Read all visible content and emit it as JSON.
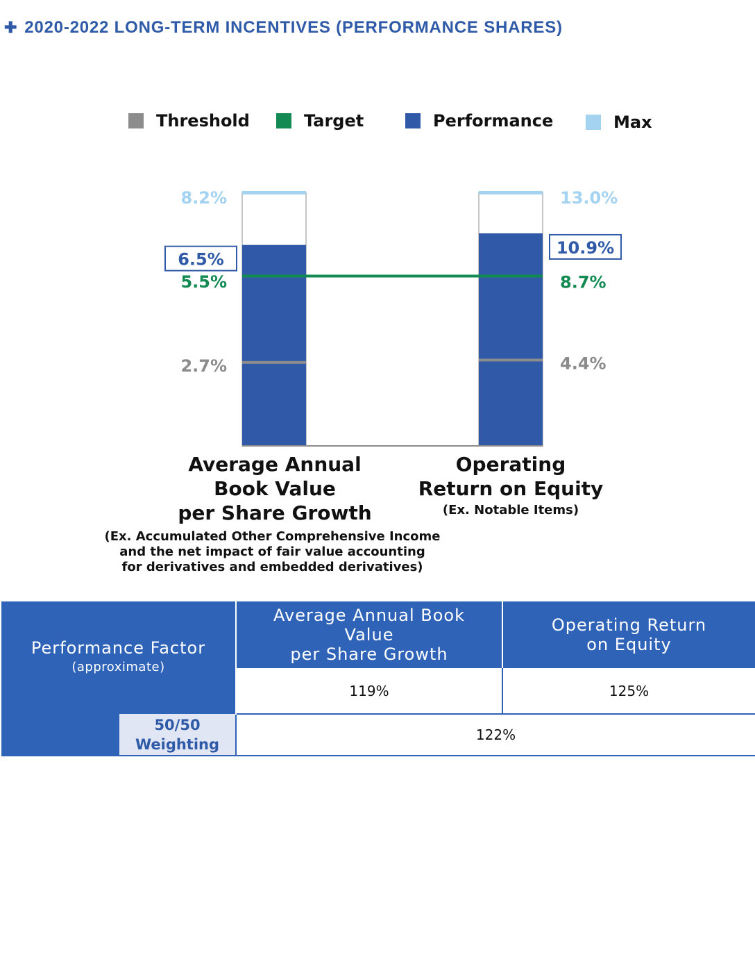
{
  "title": "2020-2022 LONG-TERM INCENTIVES (PERFORMANCE SHARES)",
  "legend": [
    {
      "label": "Threshold",
      "color": "#8c8c8c"
    },
    {
      "label": "Target",
      "color": "#138a52"
    },
    {
      "label": "Performance",
      "color": "#3059a8"
    },
    {
      "label": "Max",
      "color": "#a4d2f1"
    }
  ],
  "colors": {
    "threshold": "#8c8c8c",
    "target": "#138a52",
    "performance": "#3059a8",
    "max": "#a4d2f1",
    "table_header": "#2e63b8"
  },
  "chart_data": {
    "type": "bar",
    "categories": [
      "Average Annual Book Value per Share Growth",
      "Operating Return on Equity"
    ],
    "series": [
      {
        "name": "Threshold",
        "values": [
          2.7,
          4.4
        ],
        "labels": [
          "2.7%",
          "4.4%"
        ]
      },
      {
        "name": "Target",
        "values": [
          5.5,
          8.7
        ],
        "labels": [
          "5.5%",
          "8.7%"
        ]
      },
      {
        "name": "Performance",
        "values": [
          6.5,
          10.9
        ],
        "labels": [
          "6.5%",
          "10.9%"
        ]
      },
      {
        "name": "Max",
        "values": [
          8.2,
          13.0
        ],
        "labels": [
          "8.2%",
          "13.0%"
        ]
      }
    ],
    "unit": "%",
    "bars": [
      {
        "threshold_label": "2.7%",
        "target_label": "5.5%",
        "performance_label": "6.5%",
        "max_label": "8.2%"
      },
      {
        "threshold_label": "4.4%",
        "target_label": "8.7%",
        "performance_label": "10.9%",
        "max_label": "13.0%"
      }
    ]
  },
  "categories": [
    {
      "lines": [
        "Average Annual",
        "Book Value",
        "per Share Growth"
      ],
      "notes": [
        "(Ex. Accumulated Other Comprehensive Income",
        "and the net impact of fair value accounting",
        "for derivatives and embedded derivatives)"
      ]
    },
    {
      "lines": [
        "Operating",
        "Return on Equity"
      ],
      "notes": [
        "(Ex. Notable Items)"
      ]
    }
  ],
  "table": {
    "factor_label": "Performance Factor",
    "factor_sub": "(approximate)",
    "col1_lines": [
      "Average Annual Book",
      "Value",
      "per Share Growth"
    ],
    "col2_lines": [
      "Operating Return",
      "on Equity"
    ],
    "col1_value": "119%",
    "col2_value": "125%",
    "weighting_lines": [
      "50/50",
      "Weighting"
    ],
    "weighted_value": "122%"
  }
}
